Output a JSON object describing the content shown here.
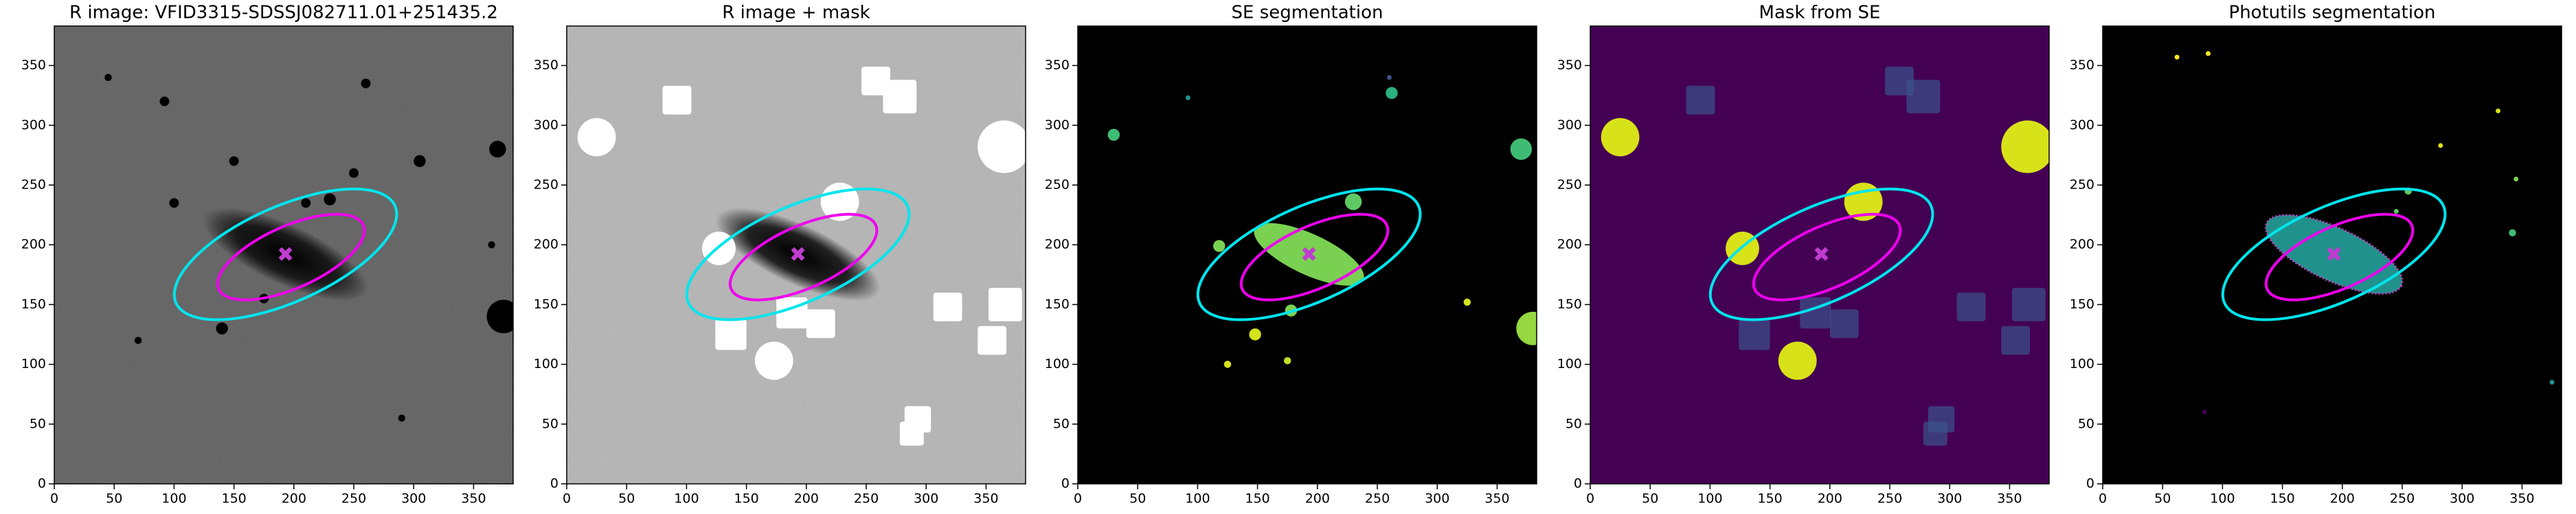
{
  "chart_data": [
    {
      "type": "image",
      "title": "R image: VFID3315-SDSSJ082711.01+251435.2",
      "xlim": [
        0,
        383
      ],
      "ylim": [
        0,
        383
      ],
      "xticks": [
        0,
        50,
        100,
        150,
        200,
        250,
        300,
        350
      ],
      "yticks": [
        0,
        50,
        100,
        150,
        200,
        250,
        300,
        350
      ]
    },
    {
      "type": "image",
      "title": "R image + mask",
      "xlim": [
        0,
        383
      ],
      "ylim": [
        0,
        383
      ],
      "xticks": [
        0,
        50,
        100,
        150,
        200,
        250,
        300,
        350
      ],
      "yticks": [
        0,
        50,
        100,
        150,
        200,
        250,
        300,
        350
      ]
    },
    {
      "type": "image",
      "title": "SE segmentation",
      "xlim": [
        0,
        383
      ],
      "ylim": [
        0,
        383
      ],
      "xticks": [
        0,
        50,
        100,
        150,
        200,
        250,
        300,
        350
      ],
      "yticks": [
        0,
        50,
        100,
        150,
        200,
        250,
        300,
        350
      ]
    },
    {
      "type": "image",
      "title": "Mask from SE",
      "xlim": [
        0,
        383
      ],
      "ylim": [
        0,
        383
      ],
      "xticks": [
        0,
        50,
        100,
        150,
        200,
        250,
        300,
        350
      ],
      "yticks": [
        0,
        50,
        100,
        150,
        200,
        250,
        300,
        350
      ]
    },
    {
      "type": "image",
      "title": "Photutils segmentation",
      "xlim": [
        0,
        383
      ],
      "ylim": [
        0,
        383
      ],
      "xticks": [
        0,
        50,
        100,
        150,
        200,
        250,
        300,
        350
      ],
      "yticks": [
        0,
        50,
        100,
        150,
        200,
        250,
        300,
        350
      ]
    }
  ]
}
